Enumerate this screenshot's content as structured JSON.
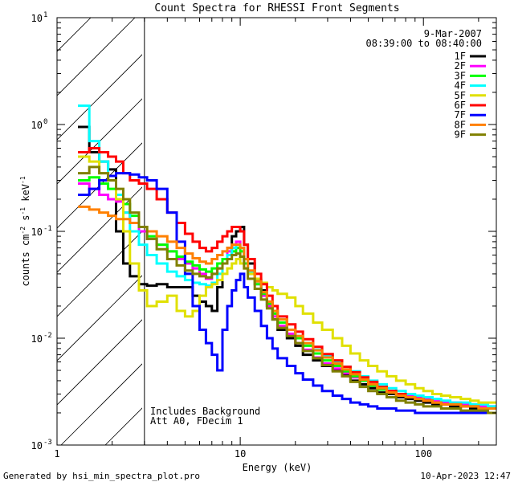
{
  "footer": {
    "generated": "Generated by hsi_min_spectra_plot.pro",
    "timestamp": "10-Apr-2023 12:47"
  },
  "chart_data": {
    "type": "line",
    "title": "Count Spectra for RHESSI Front Segments",
    "xlabel": "Energy (keV)",
    "ylabel_main": "counts cm",
    "ylabel_exp1": "-2",
    "ylabel_s": " s",
    "ylabel_exp2": "-1",
    "ylabel_kev": " keV",
    "ylabel_exp3": "-1",
    "xscale": "log",
    "yscale": "log",
    "xlim": [
      1,
      250
    ],
    "ylim": [
      0.001,
      10
    ],
    "x_ticks": [
      {
        "v": 1,
        "label": "1"
      },
      {
        "v": 10,
        "label": "10"
      },
      {
        "v": 100,
        "label": "100"
      }
    ],
    "y_ticks": [
      {
        "v": 0.001,
        "base": "10",
        "exp": "-3"
      },
      {
        "v": 0.01,
        "base": "10",
        "exp": "-2"
      },
      {
        "v": 0.1,
        "base": "10",
        "exp": "-1"
      },
      {
        "v": 1,
        "base": "10",
        "exp": "0"
      },
      {
        "v": 10,
        "base": "10",
        "exp": "1"
      }
    ],
    "date": "9-Mar-2007",
    "time_range": "08:39:00 to 08:40:00",
    "shaded_limit_kev": 3,
    "annotation_lines": [
      "Includes Background",
      "Att A0, FDecim 1"
    ],
    "energy_bins": [
      1.3,
      1.5,
      1.7,
      1.9,
      2.1,
      2.3,
      2.5,
      2.8,
      3.1,
      3.5,
      4,
      4.5,
      5,
      5.5,
      6,
      6.5,
      7,
      7.5,
      8,
      8.5,
      9,
      9.5,
      10,
      10.5,
      11,
      12,
      13,
      14,
      15,
      16,
      18,
      20,
      22,
      25,
      28,
      32,
      36,
      40,
      45,
      50,
      56,
      63,
      71,
      80,
      90,
      100,
      112,
      125,
      140,
      160,
      180,
      200,
      225
    ],
    "series": [
      {
        "name": "1F",
        "color": "#000000",
        "values": [
          0.95,
          0.55,
          0.45,
          0.38,
          0.1,
          0.05,
          0.038,
          0.032,
          0.031,
          0.032,
          0.03,
          0.03,
          0.03,
          0.025,
          0.022,
          0.02,
          0.018,
          0.03,
          0.05,
          0.07,
          0.09,
          0.1,
          0.11,
          0.075,
          0.05,
          0.035,
          0.028,
          0.02,
          0.015,
          0.012,
          0.01,
          0.0085,
          0.007,
          0.0062,
          0.0055,
          0.005,
          0.0045,
          0.004,
          0.0037,
          0.0034,
          0.0031,
          0.003,
          0.0028,
          0.0027,
          0.0026,
          0.0025,
          0.0024,
          0.0024,
          0.0023,
          0.0023,
          0.0022,
          0.0022,
          0.0022
        ]
      },
      {
        "name": "2F",
        "color": "#ff00ff",
        "values": [
          0.28,
          0.25,
          0.22,
          0.2,
          0.19,
          0.15,
          0.12,
          0.1,
          0.085,
          0.075,
          0.065,
          0.055,
          0.05,
          0.045,
          0.04,
          0.036,
          0.04,
          0.045,
          0.055,
          0.065,
          0.075,
          0.08,
          0.07,
          0.05,
          0.04,
          0.032,
          0.025,
          0.02,
          0.016,
          0.013,
          0.011,
          0.009,
          0.0078,
          0.0066,
          0.0058,
          0.0052,
          0.0047,
          0.0043,
          0.004,
          0.0037,
          0.0034,
          0.0032,
          0.003,
          0.0029,
          0.0028,
          0.0027,
          0.0026,
          0.0025,
          0.0025,
          0.0024,
          0.0024,
          0.0023,
          0.0023
        ]
      },
      {
        "name": "3F",
        "color": "#00ff00",
        "values": [
          0.3,
          0.32,
          0.28,
          0.25,
          0.22,
          0.18,
          0.14,
          0.11,
          0.09,
          0.075,
          0.065,
          0.058,
          0.052,
          0.048,
          0.044,
          0.042,
          0.045,
          0.05,
          0.055,
          0.06,
          0.065,
          0.07,
          0.065,
          0.05,
          0.04,
          0.032,
          0.026,
          0.021,
          0.017,
          0.014,
          0.012,
          0.01,
          0.0085,
          0.0072,
          0.0062,
          0.0055,
          0.0049,
          0.0044,
          0.004,
          0.0036,
          0.0033,
          0.0031,
          0.0029,
          0.0028,
          0.0027,
          0.0026,
          0.0025,
          0.0024,
          0.0024,
          0.0023,
          0.0023,
          0.0022,
          0.0022
        ]
      },
      {
        "name": "4F",
        "color": "#00ffff",
        "values": [
          1.5,
          0.7,
          0.45,
          0.3,
          0.22,
          0.15,
          0.1,
          0.075,
          0.06,
          0.05,
          0.042,
          0.038,
          0.035,
          0.033,
          0.032,
          0.031,
          0.033,
          0.04,
          0.05,
          0.06,
          0.07,
          0.075,
          0.07,
          0.055,
          0.042,
          0.034,
          0.027,
          0.022,
          0.018,
          0.015,
          0.012,
          0.0105,
          0.009,
          0.0078,
          0.0068,
          0.006,
          0.0054,
          0.0049,
          0.0044,
          0.004,
          0.0037,
          0.0034,
          0.0032,
          0.003,
          0.0029,
          0.0028,
          0.0027,
          0.0026,
          0.0025,
          0.0025,
          0.0024,
          0.0024,
          0.0023
        ]
      },
      {
        "name": "5F",
        "color": "#e0e000",
        "values": [
          0.5,
          0.45,
          0.35,
          0.3,
          0.2,
          0.1,
          0.05,
          0.028,
          0.02,
          0.022,
          0.025,
          0.018,
          0.016,
          0.018,
          0.025,
          0.03,
          0.032,
          0.035,
          0.04,
          0.045,
          0.05,
          0.055,
          0.05,
          0.045,
          0.04,
          0.036,
          0.033,
          0.03,
          0.028,
          0.026,
          0.024,
          0.02,
          0.017,
          0.014,
          0.012,
          0.01,
          0.0085,
          0.0072,
          0.0062,
          0.0055,
          0.0049,
          0.0044,
          0.004,
          0.0037,
          0.0034,
          0.0032,
          0.003,
          0.0029,
          0.0028,
          0.0027,
          0.0026,
          0.0025,
          0.0025
        ]
      },
      {
        "name": "6F",
        "color": "#ff0000",
        "values": [
          0.55,
          0.6,
          0.55,
          0.5,
          0.45,
          0.35,
          0.3,
          0.28,
          0.25,
          0.2,
          0.15,
          0.12,
          0.095,
          0.08,
          0.07,
          0.065,
          0.07,
          0.08,
          0.09,
          0.1,
          0.11,
          0.11,
          0.1,
          0.075,
          0.055,
          0.04,
          0.032,
          0.025,
          0.02,
          0.016,
          0.0135,
          0.0115,
          0.0098,
          0.0083,
          0.0071,
          0.0062,
          0.0054,
          0.0048,
          0.0043,
          0.0039,
          0.0035,
          0.0032,
          0.003,
          0.0028,
          0.0027,
          0.0026,
          0.0025,
          0.0024,
          0.0024,
          0.0023,
          0.0023,
          0.0022,
          0.0022
        ]
      },
      {
        "name": "7F",
        "color": "#0000ff",
        "values": [
          0.22,
          0.25,
          0.3,
          0.33,
          0.35,
          0.35,
          0.34,
          0.32,
          0.3,
          0.25,
          0.15,
          0.08,
          0.04,
          0.02,
          0.012,
          0.009,
          0.007,
          0.005,
          0.012,
          0.02,
          0.028,
          0.035,
          0.04,
          0.03,
          0.024,
          0.018,
          0.013,
          0.01,
          0.008,
          0.0065,
          0.0055,
          0.0047,
          0.0041,
          0.0036,
          0.0032,
          0.0029,
          0.0027,
          0.0025,
          0.0024,
          0.0023,
          0.0022,
          0.0022,
          0.0021,
          0.0021,
          0.002,
          0.002,
          0.002,
          0.002,
          0.002,
          0.002,
          0.002,
          0.002,
          0.002
        ]
      },
      {
        "name": "8F",
        "color": "#ff8000",
        "values": [
          0.17,
          0.16,
          0.15,
          0.14,
          0.13,
          0.13,
          0.12,
          0.11,
          0.1,
          0.09,
          0.08,
          0.07,
          0.062,
          0.056,
          0.052,
          0.05,
          0.055,
          0.06,
          0.065,
          0.07,
          0.075,
          0.075,
          0.07,
          0.055,
          0.043,
          0.034,
          0.027,
          0.022,
          0.018,
          0.015,
          0.012,
          0.0105,
          0.009,
          0.0077,
          0.0066,
          0.0058,
          0.0051,
          0.0046,
          0.0041,
          0.0037,
          0.0034,
          0.0031,
          0.0029,
          0.0028,
          0.0027,
          0.0026,
          0.0025,
          0.0024,
          0.0024,
          0.0023,
          0.0023,
          0.0022,
          0.0022
        ]
      },
      {
        "name": "9F",
        "color": "#808000",
        "values": [
          0.35,
          0.4,
          0.35,
          0.3,
          0.25,
          0.2,
          0.15,
          0.11,
          0.085,
          0.068,
          0.055,
          0.048,
          0.043,
          0.04,
          0.038,
          0.037,
          0.04,
          0.045,
          0.05,
          0.055,
          0.06,
          0.062,
          0.058,
          0.045,
          0.036,
          0.029,
          0.023,
          0.019,
          0.015,
          0.0125,
          0.0105,
          0.009,
          0.0076,
          0.0065,
          0.0056,
          0.0049,
          0.0044,
          0.0039,
          0.0035,
          0.0032,
          0.003,
          0.0028,
          0.0026,
          0.0025,
          0.0024,
          0.0023,
          0.0023,
          0.0022,
          0.0022,
          0.0021,
          0.0021,
          0.0021,
          0.002
        ]
      }
    ]
  }
}
